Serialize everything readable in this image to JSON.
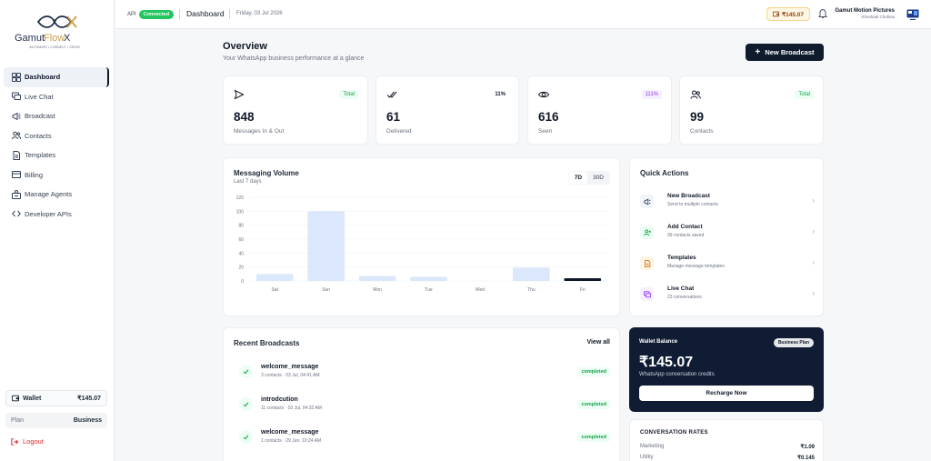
{
  "brand": {
    "name_part1": "Gamut",
    "name_part2": "Flow",
    "name_part3": "X",
    "tagline": "AUTOMATE • CONNECT • GROW"
  },
  "sidebar": {
    "items": [
      {
        "label": "Dashboard",
        "icon": "dashboard-icon",
        "active": true
      },
      {
        "label": "Live Chat",
        "icon": "chat-icon"
      },
      {
        "label": "Broadcast",
        "icon": "megaphone-icon"
      },
      {
        "label": "Contacts",
        "icon": "users-icon"
      },
      {
        "label": "Templates",
        "icon": "document-icon"
      },
      {
        "label": "Billing",
        "icon": "card-icon"
      },
      {
        "label": "Manage Agents",
        "icon": "agents-icon"
      },
      {
        "label": "Developer APIs",
        "icon": "code-icon"
      }
    ],
    "wallet_label": "Wallet",
    "wallet_value": "₹145.07",
    "plan_label": "Plan",
    "plan_value": "Business",
    "logout_label": "Logout"
  },
  "topbar": {
    "api_label": "API",
    "api_status": "Connected",
    "title": "Dashboard",
    "date": "Friday, 03 Jul 2026",
    "wallet": "₹145.07",
    "user_name": "Gamut Motion Pictures",
    "user_location": "Khushaal Chobisa"
  },
  "overview": {
    "title": "Overview",
    "subtitle": "Your WhatsApp business performance at a glance",
    "new_broadcast": "New Broadcast"
  },
  "stats": [
    {
      "value": "848",
      "label": "Messages In & Out",
      "tag": "Total",
      "tag_style": "green",
      "icon": "send-icon"
    },
    {
      "value": "61",
      "label": "Delivered",
      "tag": "11%",
      "tag_style": "plain",
      "icon": "double-check-icon"
    },
    {
      "value": "616",
      "label": "Seen",
      "tag": "111%",
      "tag_style": "purple",
      "icon": "eye-icon"
    },
    {
      "value": "99",
      "label": "Contacts",
      "tag": "Total",
      "tag_style": "green",
      "icon": "users-icon"
    }
  ],
  "volume": {
    "title": "Messaging Volume",
    "subtitle": "Last 7 days",
    "range_options": [
      "7D",
      "30D"
    ],
    "range_selected": "7D"
  },
  "chart_data": {
    "type": "bar",
    "categories": [
      "Sat",
      "Sun",
      "Mon",
      "Tue",
      "Wed",
      "Thu",
      "Fri"
    ],
    "values": [
      10,
      100,
      7,
      6,
      0,
      19,
      3
    ],
    "yticks": [
      0,
      20,
      40,
      60,
      80,
      100,
      120
    ],
    "ylim": [
      0,
      120
    ],
    "highlight_last": true,
    "colors": {
      "bar": "#dbe8fb",
      "highlight": "#0f172a",
      "grid": "#eef0f3",
      "axis_text": "#6b7280"
    }
  },
  "quick_actions": {
    "title": "Quick Actions",
    "items": [
      {
        "title": "New Broadcast",
        "subtitle": "Send to multiple contacts",
        "icon": "megaphone-icon",
        "bg": "#f1f5f9",
        "fg": "#334155"
      },
      {
        "title": "Add Contact",
        "subtitle": "99 contacts saved",
        "icon": "add-user-icon",
        "bg": "#ecfdf3",
        "fg": "#16a34a"
      },
      {
        "title": "Templates",
        "subtitle": "Manage message templates",
        "icon": "document-icon",
        "bg": "#fff4e5",
        "fg": "#d97706"
      },
      {
        "title": "Live Chat",
        "subtitle": "23 conversations",
        "icon": "chat-icon",
        "bg": "#f5efff",
        "fg": "#9333ea"
      }
    ]
  },
  "recent_broadcasts": {
    "title": "Recent Broadcasts",
    "view_all": "View all",
    "items": [
      {
        "name": "welcome_message",
        "meta": "3 contacts · 03 Jul, 04:41 AM",
        "status": "completed"
      },
      {
        "name": "introdcution",
        "meta": "11 contacts · 03 Jul, 04:32 AM",
        "status": "completed"
      },
      {
        "name": "welcome_message",
        "meta": "1 contacts · 29 Jun, 10:24 AM",
        "status": "completed"
      }
    ]
  },
  "wallet_card": {
    "label": "Wallet Balance",
    "plan": "Business Plan",
    "amount": "₹145.07",
    "subtitle": "WhatsApp conversation credits",
    "button": "Recharge Now"
  },
  "rates": {
    "title": "CONVERSATION RATES",
    "items": [
      {
        "name": "Marketing",
        "value": "₹1.09"
      },
      {
        "name": "Utility",
        "value": "₹0.145"
      }
    ]
  }
}
